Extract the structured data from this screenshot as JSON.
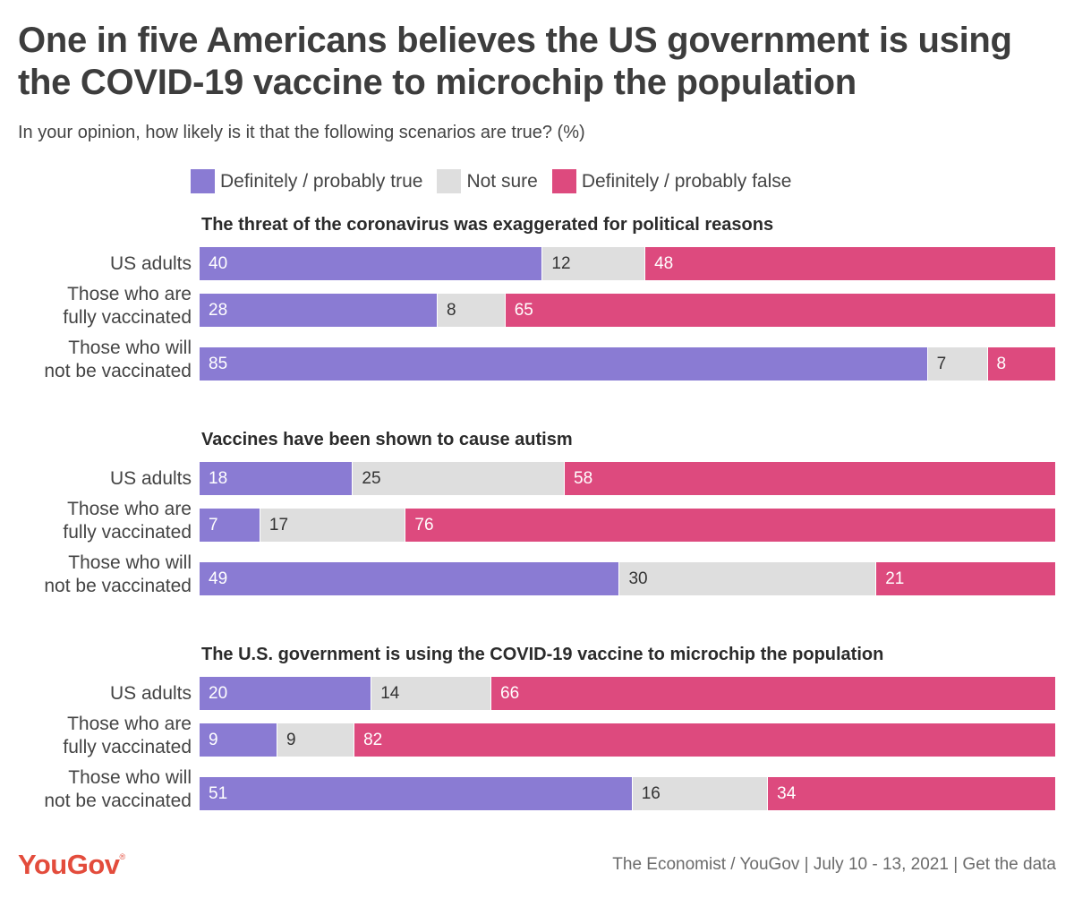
{
  "title": "One in five Americans believes the US government is using the COVID-19 vaccine to microchip the population",
  "subtitle": "In your opinion, how likely is it that the following scenarios are true? (%)",
  "legend": [
    {
      "label": "Definitely / probably true",
      "color": "#8a7bd3"
    },
    {
      "label": "Not sure",
      "color": "#dedede"
    },
    {
      "label": "Definitely / probably false",
      "color": "#dd4a7e"
    }
  ],
  "chart_data": {
    "type": "bar",
    "stacked": true,
    "orientation": "horizontal",
    "unit": "%",
    "series_names": [
      "Definitely / probably true",
      "Not sure",
      "Definitely / probably false"
    ],
    "colors": [
      "#8a7bd3",
      "#dedede",
      "#dd4a7e"
    ],
    "panels": [
      {
        "title": "The threat of the coronavirus was exaggerated for political reasons",
        "rows": [
          {
            "label": "US adults",
            "values": [
              40,
              12,
              48
            ]
          },
          {
            "label": "Those who are fully vaccinated",
            "values": [
              28,
              8,
              65
            ]
          },
          {
            "label": "Those who will not be vaccinated",
            "values": [
              85,
              7,
              8
            ]
          }
        ]
      },
      {
        "title": "Vaccines have been shown to cause autism",
        "rows": [
          {
            "label": "US adults",
            "values": [
              18,
              25,
              58
            ]
          },
          {
            "label": "Those who are fully vaccinated",
            "values": [
              7,
              17,
              76
            ]
          },
          {
            "label": "Those who will not be vaccinated",
            "values": [
              49,
              30,
              21
            ]
          }
        ]
      },
      {
        "title": "The U.S. government is using the COVID-19 vaccine to microchip the population",
        "rows": [
          {
            "label": "US adults",
            "values": [
              20,
              14,
              66
            ]
          },
          {
            "label": "Those who are fully vaccinated",
            "values": [
              9,
              9,
              82
            ]
          },
          {
            "label": "Those who will not be vaccinated",
            "values": [
              51,
              16,
              34
            ]
          }
        ]
      }
    ]
  },
  "footer": {
    "brand": "YouGov",
    "brand_mark": "®",
    "source": "The Economist / YouGov | July 10 - 13, 2021 | Get the data"
  }
}
